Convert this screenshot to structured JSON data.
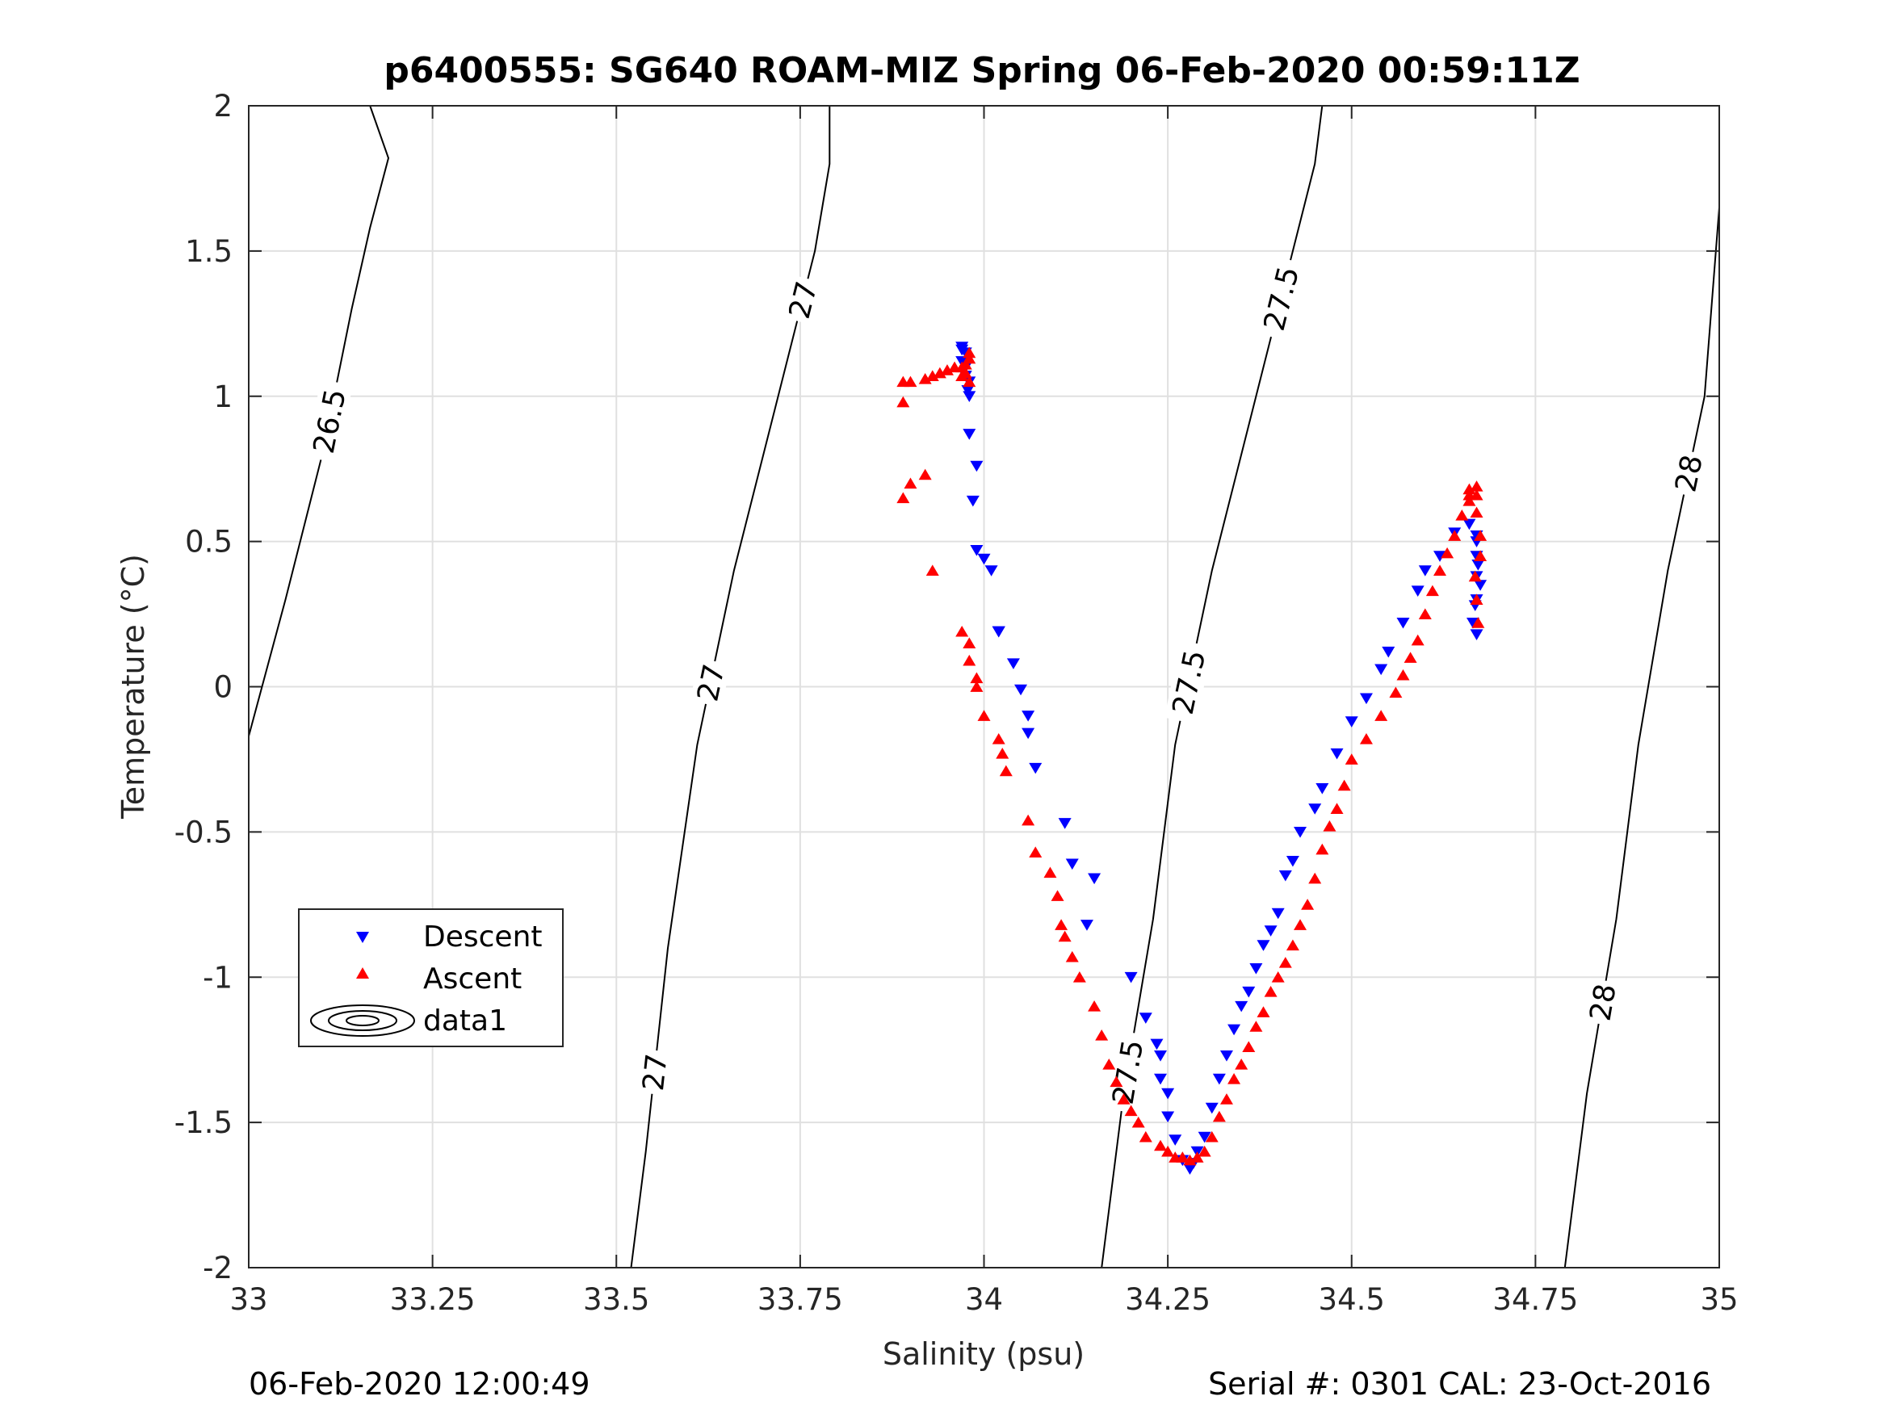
{
  "chart_data": {
    "type": "scatter",
    "title": "p6400555: SG640 ROAM-MIZ Spring 06-Feb-2020 00:59:11Z",
    "xlabel": "Salinity (psu)",
    "ylabel": "Temperature (°C)",
    "xlim": [
      33,
      35
    ],
    "ylim": [
      -2,
      2
    ],
    "xticks": [
      "33",
      "33.25",
      "33.5",
      "33.75",
      "34",
      "34.25",
      "34.5",
      "34.75",
      "35"
    ],
    "yticks": [
      "-2",
      "-1.5",
      "-1",
      "-0.5",
      "0",
      "0.5",
      "1",
      "1.5",
      "2"
    ],
    "grid": true,
    "legend": {
      "placement": "lower-left",
      "entries": [
        "Descent",
        "Ascent",
        "data1"
      ]
    },
    "colors": {
      "descent": "#0000ff",
      "ascent": "#ff0000",
      "contour": "#000000",
      "grid": "#e0e0e0"
    },
    "contours": [
      {
        "level": "26.5",
        "labels": [
          "26.5"
        ],
        "points": [
          [
            33.0,
            -0.17
          ],
          [
            33.05,
            0.3
          ],
          [
            33.1,
            0.8
          ],
          [
            33.14,
            1.3
          ],
          [
            33.165,
            1.58
          ],
          [
            33.19,
            1.82
          ],
          [
            33.165,
            2.0
          ]
        ]
      },
      {
        "level": "27",
        "labels": [
          "27",
          "27",
          "27"
        ],
        "points": [
          [
            33.52,
            -2.0
          ],
          [
            33.54,
            -1.6
          ],
          [
            33.57,
            -0.9
          ],
          [
            33.61,
            -0.2
          ],
          [
            33.66,
            0.4
          ],
          [
            33.72,
            1.0
          ],
          [
            33.77,
            1.5
          ],
          [
            33.79,
            1.8
          ],
          [
            33.79,
            2.0
          ]
        ]
      },
      {
        "level": "27.5",
        "labels": [
          "27.5",
          "27.5",
          "27.5"
        ],
        "points": [
          [
            34.16,
            -2.0
          ],
          [
            34.19,
            -1.4
          ],
          [
            34.23,
            -0.8
          ],
          [
            34.26,
            -0.2
          ],
          [
            34.31,
            0.4
          ],
          [
            34.37,
            1.0
          ],
          [
            34.42,
            1.5
          ],
          [
            34.45,
            1.8
          ],
          [
            34.46,
            2.0
          ]
        ]
      },
      {
        "level": "28",
        "labels": [
          "28",
          "28"
        ],
        "points": [
          [
            34.79,
            -2.0
          ],
          [
            34.82,
            -1.4
          ],
          [
            34.86,
            -0.8
          ],
          [
            34.89,
            -0.2
          ],
          [
            34.93,
            0.4
          ],
          [
            34.98,
            1.0
          ],
          [
            35.0,
            1.65
          ]
        ]
      }
    ],
    "series": [
      {
        "name": "Descent",
        "marker": "triangle-down",
        "x": [
          33.97,
          33.975,
          33.975,
          33.98,
          33.978,
          33.98,
          33.97,
          33.975,
          33.97,
          33.98,
          33.99,
          33.985,
          33.99,
          34.0,
          34.01,
          34.02,
          34.02,
          34.02,
          34.04,
          34.05,
          34.06,
          34.06,
          34.07,
          34.11,
          34.12,
          34.15,
          34.14,
          34.2,
          34.22,
          34.235,
          34.24,
          34.24,
          34.25,
          34.25,
          34.26,
          34.27,
          34.28,
          34.285,
          34.29,
          34.3,
          34.31,
          34.32,
          34.33,
          34.34,
          34.35,
          34.36,
          34.37,
          34.38,
          34.39,
          34.4,
          34.41,
          34.42,
          34.43,
          34.45,
          34.46,
          34.48,
          34.5,
          34.52,
          34.54,
          34.55,
          34.57,
          34.59,
          34.6,
          34.62,
          34.64,
          34.66,
          34.67,
          34.67,
          34.67,
          34.67,
          34.665,
          34.67,
          34.672,
          34.668,
          34.675,
          34.67
        ],
        "y": [
          1.17,
          1.15,
          1.1,
          1.05,
          1.02,
          1.0,
          1.12,
          1.07,
          1.16,
          0.87,
          0.76,
          0.64,
          0.47,
          0.44,
          0.4,
          0.19,
          0.19,
          0.19,
          0.08,
          -0.01,
          -0.1,
          -0.16,
          -0.28,
          -0.47,
          -0.61,
          -0.66,
          -0.82,
          -1.0,
          -1.14,
          -1.23,
          -1.27,
          -1.35,
          -1.4,
          -1.48,
          -1.56,
          -1.63,
          -1.66,
          -1.64,
          -1.6,
          -1.55,
          -1.45,
          -1.35,
          -1.27,
          -1.18,
          -1.1,
          -1.05,
          -0.97,
          -0.89,
          -0.84,
          -0.78,
          -0.65,
          -0.6,
          -0.5,
          -0.42,
          -0.35,
          -0.23,
          -0.12,
          -0.04,
          0.06,
          0.12,
          0.22,
          0.33,
          0.4,
          0.45,
          0.53,
          0.56,
          0.52,
          0.45,
          0.38,
          0.3,
          0.22,
          0.18,
          0.42,
          0.28,
          0.35,
          0.5
        ]
      },
      {
        "name": "Ascent",
        "marker": "triangle-up",
        "x": [
          33.89,
          33.9,
          33.92,
          33.93,
          33.94,
          33.95,
          33.96,
          33.97,
          33.975,
          33.98,
          33.97,
          33.975,
          33.98,
          33.98,
          33.89,
          33.89,
          33.92,
          33.9,
          33.93,
          33.97,
          33.98,
          33.98,
          33.99,
          33.99,
          34.0,
          34.02,
          34.025,
          34.03,
          34.06,
          34.07,
          34.09,
          34.1,
          34.105,
          34.11,
          34.12,
          34.13,
          34.15,
          34.16,
          34.17,
          34.18,
          34.19,
          34.2,
          34.21,
          34.22,
          34.24,
          34.25,
          34.26,
          34.27,
          34.28,
          34.29,
          34.3,
          34.31,
          34.32,
          34.33,
          34.34,
          34.35,
          34.36,
          34.37,
          34.38,
          34.39,
          34.4,
          34.41,
          34.42,
          34.43,
          34.44,
          34.45,
          34.46,
          34.47,
          34.48,
          34.49,
          34.5,
          34.52,
          34.54,
          34.56,
          34.57,
          34.58,
          34.59,
          34.6,
          34.61,
          34.62,
          34.63,
          34.64,
          34.65,
          34.66,
          34.66,
          34.66,
          34.67,
          34.67,
          34.67,
          34.675,
          34.675,
          34.67,
          34.672,
          34.668
        ],
        "y": [
          1.05,
          1.05,
          1.06,
          1.07,
          1.08,
          1.09,
          1.1,
          1.1,
          1.08,
          1.05,
          1.07,
          1.11,
          1.13,
          1.15,
          0.98,
          0.65,
          0.73,
          0.7,
          0.4,
          0.19,
          0.15,
          0.09,
          0.03,
          0.0,
          -0.1,
          -0.18,
          -0.23,
          -0.29,
          -0.46,
          -0.57,
          -0.64,
          -0.72,
          -0.82,
          -0.86,
          -0.93,
          -1.0,
          -1.1,
          -1.2,
          -1.3,
          -1.36,
          -1.42,
          -1.46,
          -1.5,
          -1.55,
          -1.58,
          -1.6,
          -1.62,
          -1.62,
          -1.63,
          -1.62,
          -1.6,
          -1.55,
          -1.48,
          -1.42,
          -1.35,
          -1.3,
          -1.24,
          -1.17,
          -1.12,
          -1.05,
          -1.0,
          -0.95,
          -0.89,
          -0.82,
          -0.75,
          -0.66,
          -0.56,
          -0.48,
          -0.42,
          -0.34,
          -0.25,
          -0.18,
          -0.1,
          -0.02,
          0.04,
          0.1,
          0.16,
          0.25,
          0.33,
          0.4,
          0.46,
          0.52,
          0.59,
          0.64,
          0.66,
          0.68,
          0.69,
          0.66,
          0.6,
          0.52,
          0.45,
          0.3,
          0.22,
          0.38
        ]
      }
    ]
  },
  "footer": {
    "timestamp": "06-Feb-2020 12:00:49",
    "serial": "Serial #: 0301  CAL: 23-Oct-2016"
  }
}
